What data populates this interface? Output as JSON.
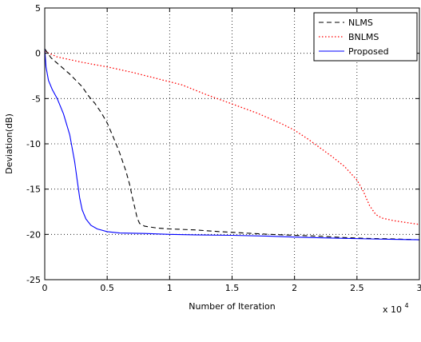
{
  "chart_data": {
    "type": "line",
    "title": "",
    "xlabel": "Number of Iteration",
    "ylabel": "Deviation(dB)",
    "x_multiplier_base": "x 10",
    "x_multiplier_exp": "4",
    "xlim": [
      0,
      3
    ],
    "ylim": [
      -25,
      5
    ],
    "xticks": [
      0,
      0.5,
      1,
      1.5,
      2,
      2.5,
      3
    ],
    "xtick_labels": [
      "0",
      "0.5",
      "1",
      "1.5",
      "2",
      "2.5",
      "3"
    ],
    "yticks": [
      5,
      0,
      -5,
      -10,
      -15,
      -20,
      -25
    ],
    "ytick_labels": [
      "5",
      "0",
      "-5",
      "-10",
      "-15",
      "-20",
      "-25"
    ],
    "grid": true,
    "legend_position": "top-right",
    "series": [
      {
        "name": "NLMS",
        "color": "#000000",
        "style": "dashed",
        "points": [
          [
            0,
            0.5
          ],
          [
            0.05,
            -0.5
          ],
          [
            0.1,
            -1.1
          ],
          [
            0.2,
            -2.3
          ],
          [
            0.3,
            -3.7
          ],
          [
            0.35,
            -4.7
          ],
          [
            0.4,
            -5.5
          ],
          [
            0.45,
            -6.5
          ],
          [
            0.5,
            -7.7
          ],
          [
            0.55,
            -9.3
          ],
          [
            0.6,
            -11.0
          ],
          [
            0.65,
            -13.0
          ],
          [
            0.68,
            -14.5
          ],
          [
            0.7,
            -15.8
          ],
          [
            0.72,
            -17.0
          ],
          [
            0.74,
            -18.2
          ],
          [
            0.76,
            -18.8
          ],
          [
            0.8,
            -19.1
          ],
          [
            0.9,
            -19.3
          ],
          [
            1.0,
            -19.4
          ],
          [
            1.2,
            -19.5
          ],
          [
            1.4,
            -19.7
          ],
          [
            1.6,
            -19.85
          ],
          [
            1.8,
            -20.0
          ],
          [
            2.0,
            -20.1
          ],
          [
            2.2,
            -20.2
          ],
          [
            2.4,
            -20.35
          ],
          [
            2.6,
            -20.45
          ],
          [
            2.8,
            -20.5
          ],
          [
            3.0,
            -20.6
          ]
        ]
      },
      {
        "name": "BNLMS",
        "color": "#ff0000",
        "style": "dotted",
        "points": [
          [
            0,
            0.2
          ],
          [
            0.1,
            -0.4
          ],
          [
            0.3,
            -1.0
          ],
          [
            0.5,
            -1.5
          ],
          [
            0.7,
            -2.1
          ],
          [
            0.9,
            -2.8
          ],
          [
            1.1,
            -3.5
          ],
          [
            1.3,
            -4.6
          ],
          [
            1.5,
            -5.6
          ],
          [
            1.7,
            -6.6
          ],
          [
            1.9,
            -7.8
          ],
          [
            2.0,
            -8.5
          ],
          [
            2.1,
            -9.4
          ],
          [
            2.2,
            -10.4
          ],
          [
            2.3,
            -11.4
          ],
          [
            2.4,
            -12.5
          ],
          [
            2.5,
            -14.0
          ],
          [
            2.55,
            -15.2
          ],
          [
            2.6,
            -16.8
          ],
          [
            2.65,
            -17.8
          ],
          [
            2.7,
            -18.2
          ],
          [
            2.8,
            -18.5
          ],
          [
            2.9,
            -18.7
          ],
          [
            3.0,
            -18.9
          ]
        ]
      },
      {
        "name": "Proposed",
        "color": "#0000ff",
        "style": "solid",
        "points": [
          [
            0,
            0.5
          ],
          [
            0.01,
            -1.5
          ],
          [
            0.03,
            -3.0
          ],
          [
            0.06,
            -4.0
          ],
          [
            0.1,
            -5.0
          ],
          [
            0.15,
            -6.7
          ],
          [
            0.2,
            -9.0
          ],
          [
            0.24,
            -12.0
          ],
          [
            0.26,
            -14.0
          ],
          [
            0.28,
            -16.0
          ],
          [
            0.3,
            -17.3
          ],
          [
            0.33,
            -18.3
          ],
          [
            0.37,
            -19.0
          ],
          [
            0.42,
            -19.4
          ],
          [
            0.5,
            -19.7
          ],
          [
            0.6,
            -19.85
          ],
          [
            0.8,
            -19.9
          ],
          [
            1.0,
            -20.0
          ],
          [
            1.2,
            -20.05
          ],
          [
            1.5,
            -20.1
          ],
          [
            1.8,
            -20.2
          ],
          [
            2.0,
            -20.3
          ],
          [
            2.3,
            -20.4
          ],
          [
            2.6,
            -20.5
          ],
          [
            2.8,
            -20.55
          ],
          [
            3.0,
            -20.6
          ]
        ]
      }
    ]
  }
}
